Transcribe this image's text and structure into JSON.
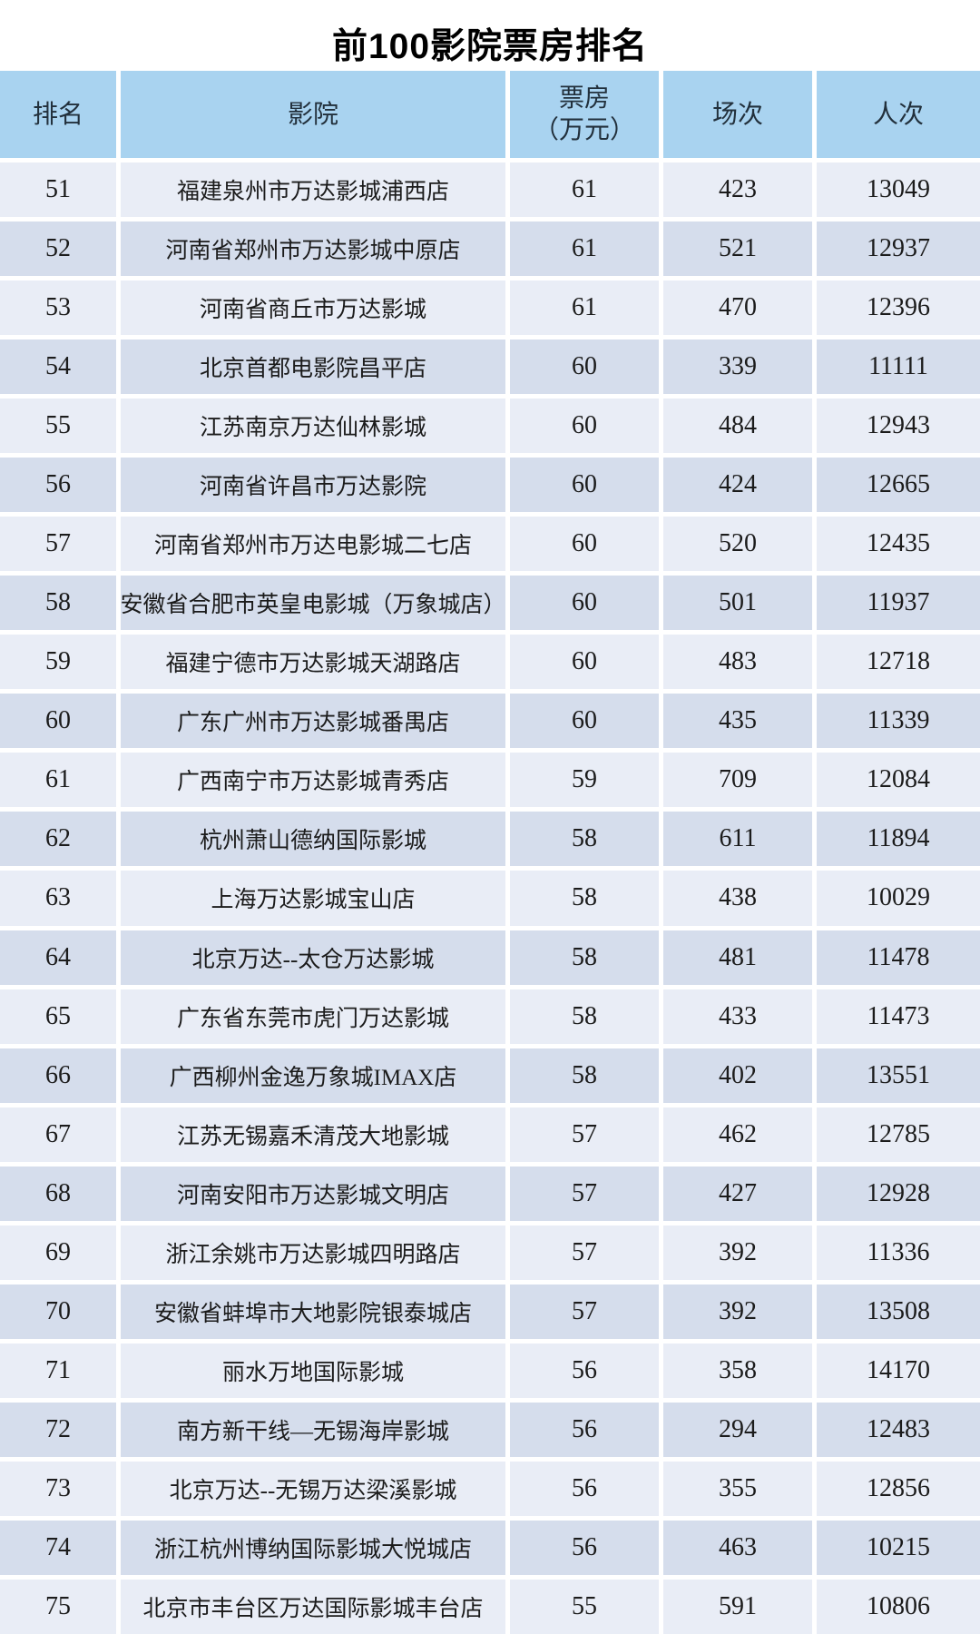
{
  "title": "前100影院票房排名",
  "colors": {
    "header_bg": "#a9d3f0",
    "row_odd_bg": "#e9edf6",
    "row_even_bg": "#d5ddec",
    "title_color": "#000000",
    "text_color": "#1b1b1b"
  },
  "table": {
    "headers": {
      "rank": "排名",
      "cinema": "影院",
      "boxoffice": "票房",
      "boxoffice_unit": "（万元）",
      "sessions": "场次",
      "attendance": "人次"
    },
    "rows": [
      {
        "rank": "51",
        "cinema": "福建泉州市万达影城浦西店",
        "boxoffice": "61",
        "sessions": "423",
        "attendance": "13049"
      },
      {
        "rank": "52",
        "cinema": "河南省郑州市万达影城中原店",
        "boxoffice": "61",
        "sessions": "521",
        "attendance": "12937"
      },
      {
        "rank": "53",
        "cinema": "河南省商丘市万达影城",
        "boxoffice": "61",
        "sessions": "470",
        "attendance": "12396"
      },
      {
        "rank": "54",
        "cinema": "北京首都电影院昌平店",
        "boxoffice": "60",
        "sessions": "339",
        "attendance": "11111"
      },
      {
        "rank": "55",
        "cinema": "江苏南京万达仙林影城",
        "boxoffice": "60",
        "sessions": "484",
        "attendance": "12943"
      },
      {
        "rank": "56",
        "cinema": "河南省许昌市万达影院",
        "boxoffice": "60",
        "sessions": "424",
        "attendance": "12665"
      },
      {
        "rank": "57",
        "cinema": "河南省郑州市万达电影城二七店",
        "boxoffice": "60",
        "sessions": "520",
        "attendance": "12435"
      },
      {
        "rank": "58",
        "cinema": "安徽省合肥市英皇电影城（万象城店）",
        "boxoffice": "60",
        "sessions": "501",
        "attendance": "11937"
      },
      {
        "rank": "59",
        "cinema": "福建宁德市万达影城天湖路店",
        "boxoffice": "60",
        "sessions": "483",
        "attendance": "12718"
      },
      {
        "rank": "60",
        "cinema": "广东广州市万达影城番禺店",
        "boxoffice": "60",
        "sessions": "435",
        "attendance": "11339"
      },
      {
        "rank": "61",
        "cinema": "广西南宁市万达影城青秀店",
        "boxoffice": "59",
        "sessions": "709",
        "attendance": "12084"
      },
      {
        "rank": "62",
        "cinema": "杭州萧山德纳国际影城",
        "boxoffice": "58",
        "sessions": "611",
        "attendance": "11894"
      },
      {
        "rank": "63",
        "cinema": "上海万达影城宝山店",
        "boxoffice": "58",
        "sessions": "438",
        "attendance": "10029"
      },
      {
        "rank": "64",
        "cinema": "北京万达--太仓万达影城",
        "boxoffice": "58",
        "sessions": "481",
        "attendance": "11478"
      },
      {
        "rank": "65",
        "cinema": "广东省东莞市虎门万达影城",
        "boxoffice": "58",
        "sessions": "433",
        "attendance": "11473"
      },
      {
        "rank": "66",
        "cinema": "广西柳州金逸万象城IMAX店",
        "boxoffice": "58",
        "sessions": "402",
        "attendance": "13551"
      },
      {
        "rank": "67",
        "cinema": "江苏无锡嘉禾清茂大地影城",
        "boxoffice": "57",
        "sessions": "462",
        "attendance": "12785"
      },
      {
        "rank": "68",
        "cinema": "河南安阳市万达影城文明店",
        "boxoffice": "57",
        "sessions": "427",
        "attendance": "12928"
      },
      {
        "rank": "69",
        "cinema": "浙江余姚市万达影城四明路店",
        "boxoffice": "57",
        "sessions": "392",
        "attendance": "11336"
      },
      {
        "rank": "70",
        "cinema": "安徽省蚌埠市大地影院银泰城店",
        "boxoffice": "57",
        "sessions": "392",
        "attendance": "13508"
      },
      {
        "rank": "71",
        "cinema": "丽水万地国际影城",
        "boxoffice": "56",
        "sessions": "358",
        "attendance": "14170"
      },
      {
        "rank": "72",
        "cinema": "南方新干线—无锡海岸影城",
        "boxoffice": "56",
        "sessions": "294",
        "attendance": "12483"
      },
      {
        "rank": "73",
        "cinema": "北京万达--无锡万达梁溪影城",
        "boxoffice": "56",
        "sessions": "355",
        "attendance": "12856"
      },
      {
        "rank": "74",
        "cinema": "浙江杭州博纳国际影城大悦城店",
        "boxoffice": "56",
        "sessions": "463",
        "attendance": "10215"
      },
      {
        "rank": "75",
        "cinema": "北京市丰台区万达国际影城丰台店",
        "boxoffice": "55",
        "sessions": "591",
        "attendance": "10806"
      }
    ]
  }
}
